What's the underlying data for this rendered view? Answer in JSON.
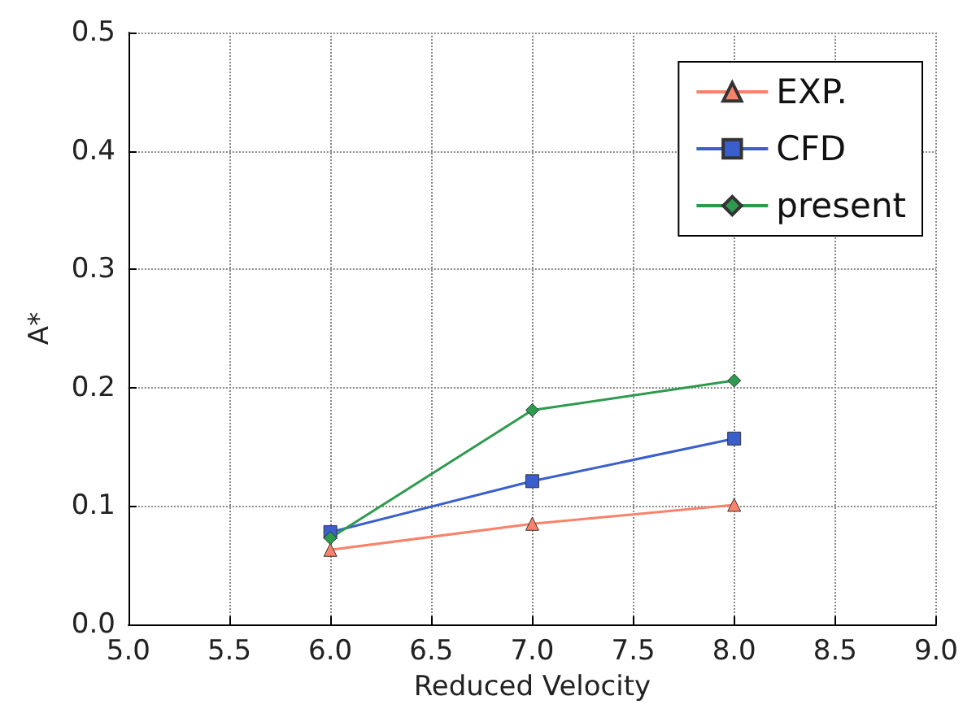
{
  "chart_data": {
    "type": "line",
    "xlabel": "Reduced Velocity",
    "ylabel": "A*",
    "x": [
      6,
      7,
      8
    ],
    "series": [
      {
        "name": "EXP.",
        "color": "#f8826a",
        "marker": "triangle",
        "values": [
          0.063,
          0.085,
          0.101
        ]
      },
      {
        "name": "CFD",
        "color": "#3a5fcd",
        "marker": "square",
        "values": [
          0.078,
          0.121,
          0.157
        ]
      },
      {
        "name": "present",
        "color": "#2e9a4e",
        "marker": "diamond",
        "values": [
          0.073,
          0.181,
          0.206
        ]
      }
    ],
    "xlim": [
      5.0,
      9.0
    ],
    "xticks": [
      {
        "value": 5,
        "label": "5.0"
      },
      {
        "value": 5.5,
        "label": "5.5"
      },
      {
        "value": 6,
        "label": "6.0"
      },
      {
        "value": 6.5,
        "label": "6.5"
      },
      {
        "value": 7,
        "label": "7.0"
      },
      {
        "value": 7.5,
        "label": "7.5"
      },
      {
        "value": 8,
        "label": "8.0"
      },
      {
        "value": 8.5,
        "label": "8.5"
      },
      {
        "value": 9,
        "label": "9.0"
      }
    ],
    "ylim": [
      0.0,
      0.5
    ],
    "yticks": [
      {
        "value": 0,
        "label": "0.0"
      },
      {
        "value": 0.1,
        "label": "0.1"
      },
      {
        "value": 0.2,
        "label": "0.2"
      },
      {
        "value": 0.3,
        "label": "0.3"
      },
      {
        "value": 0.4,
        "label": "0.4"
      },
      {
        "value": 0.5,
        "label": "0.5"
      }
    ],
    "grid": true,
    "legend": "top right",
    "line_style": "solid"
  }
}
